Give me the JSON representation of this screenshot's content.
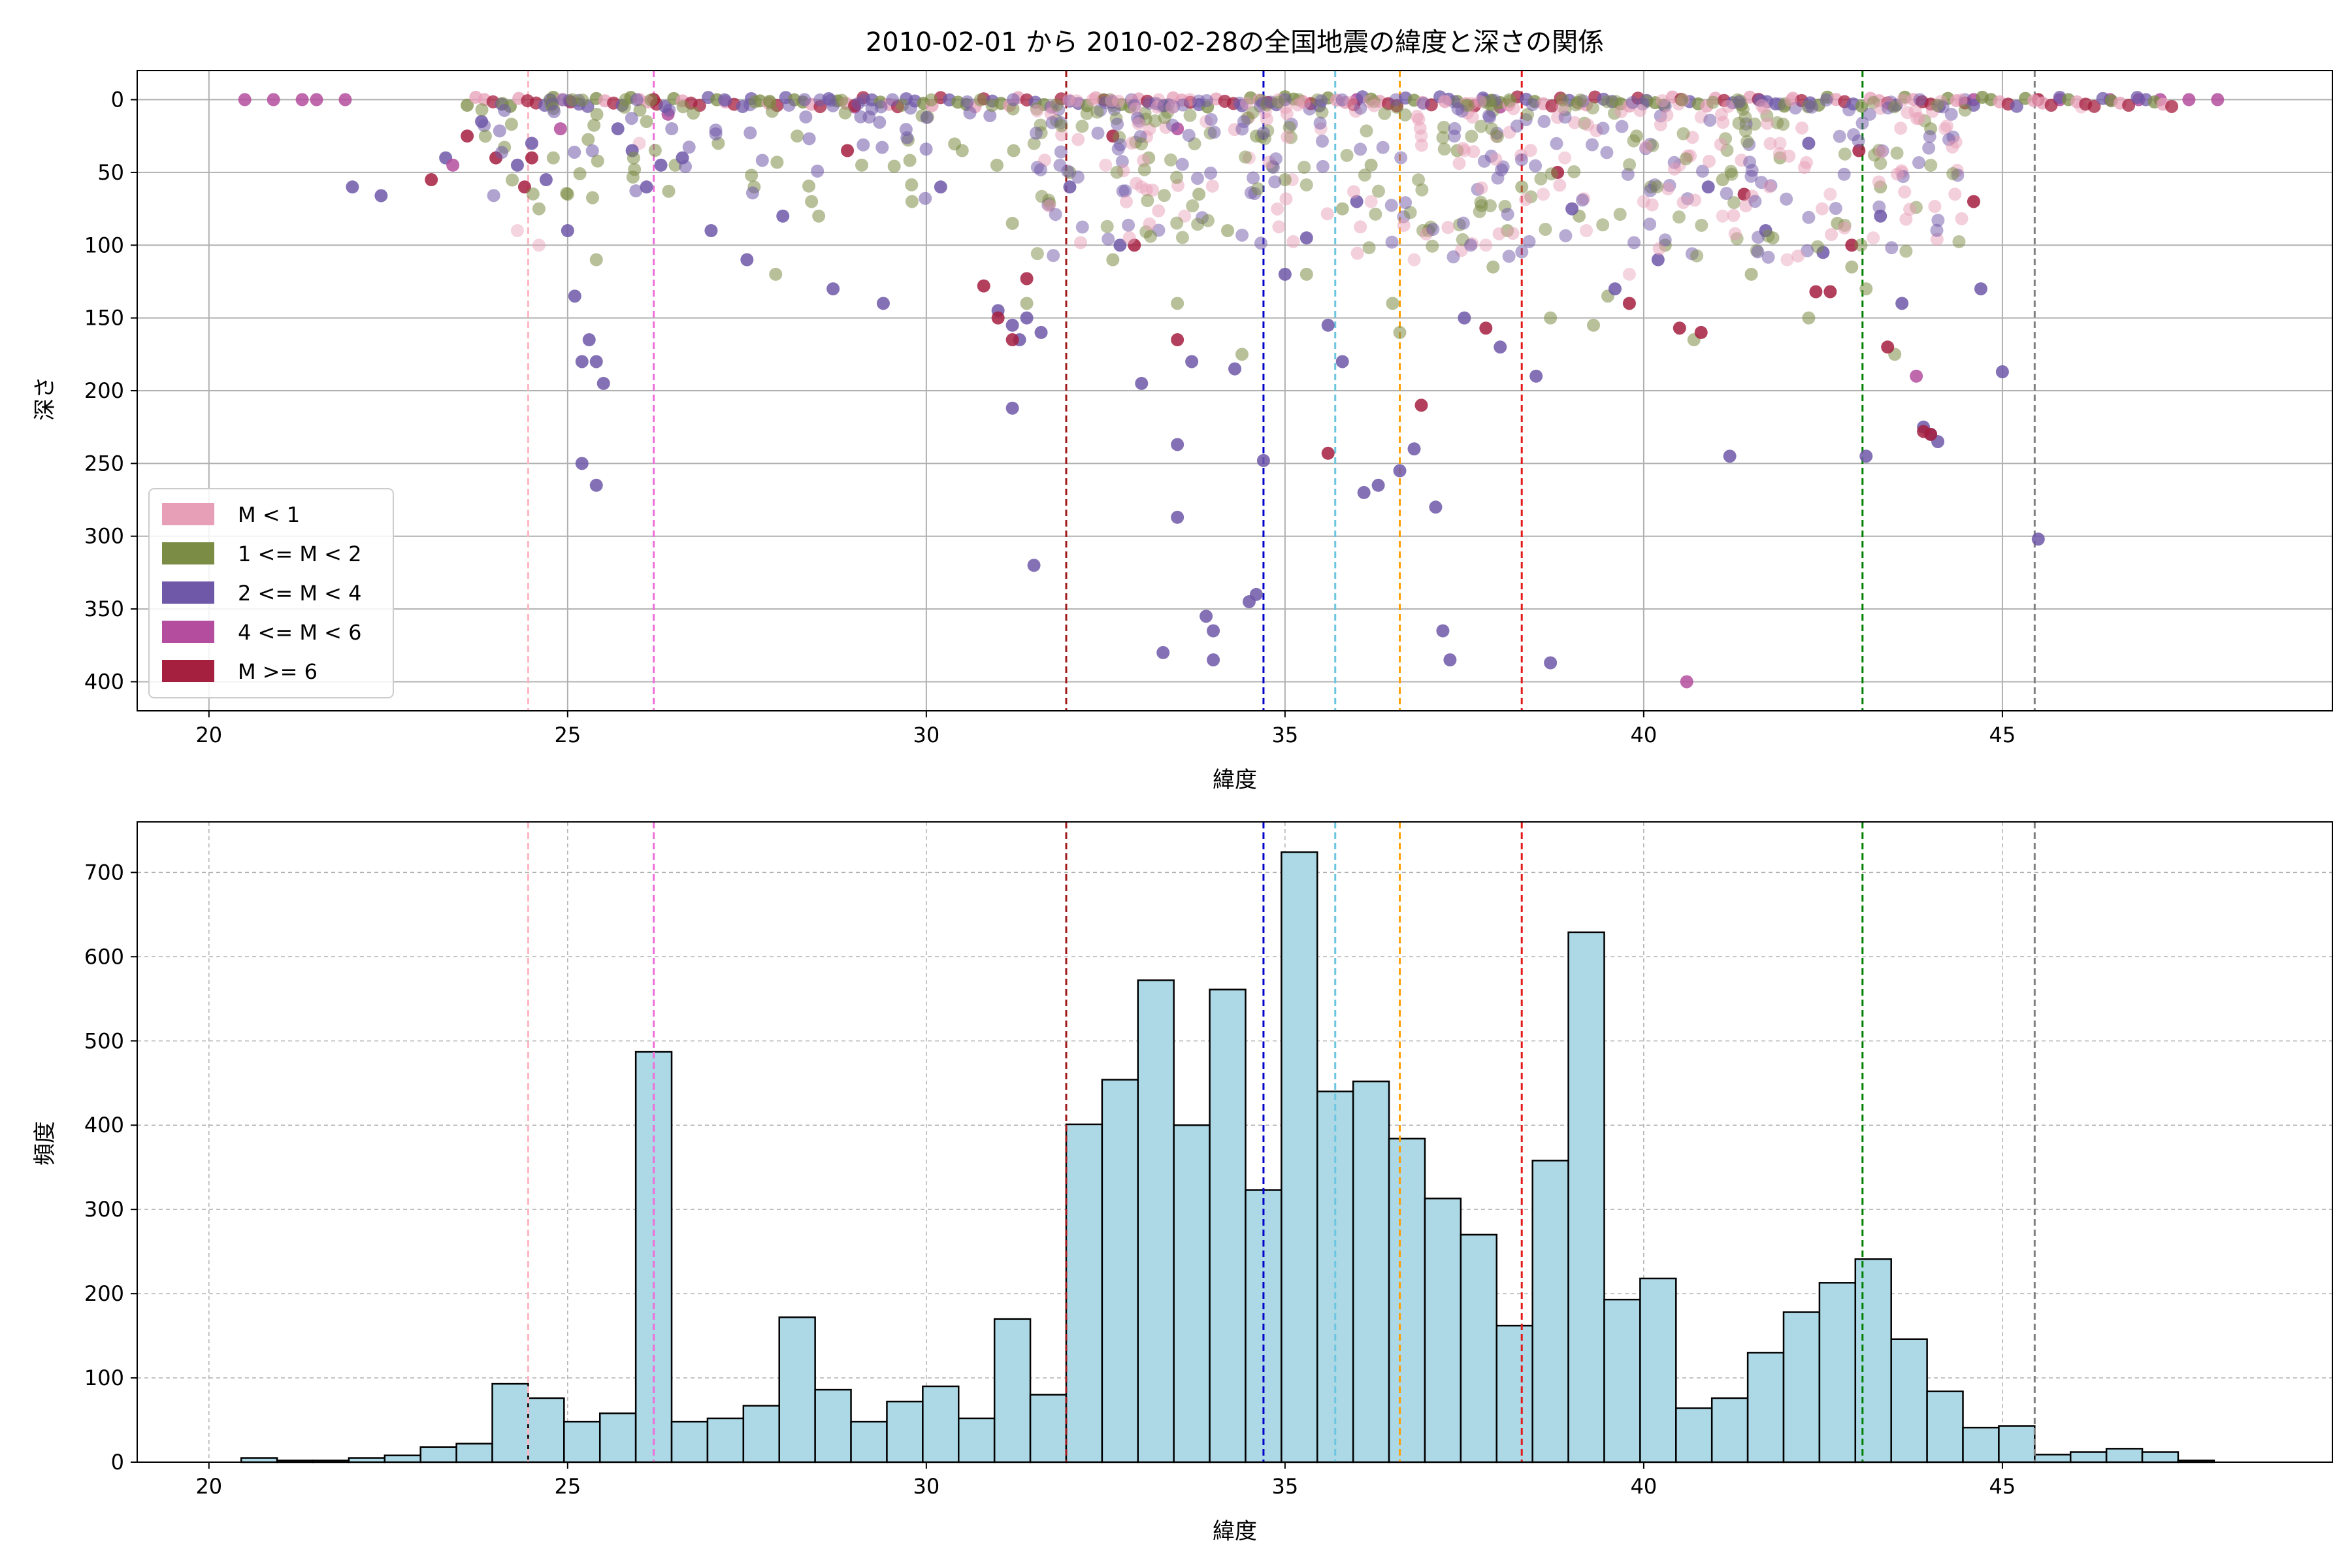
{
  "title": "2010-02-01 から 2010-02-28の全国地震の緯度と深さの関係",
  "colors": {
    "m_lt_1": "#e79fb8",
    "m_1_2": "#7b8c45",
    "m_2_4": "#6f58a8",
    "m_4_6": "#b44d9e",
    "m_ge_6": "#a51f3f",
    "hist_bar": "#add8e6",
    "hist_edge": "#000000",
    "grid": "#b0b0b0"
  },
  "reference_lines": [
    {
      "x": 24.45,
      "color": "#ffb6c1"
    },
    {
      "x": 26.2,
      "color": "#ee6fd8"
    },
    {
      "x": 31.95,
      "color": "#a11b1b"
    },
    {
      "x": 34.7,
      "color": "#0000c8"
    },
    {
      "x": 35.7,
      "color": "#6cc6e0"
    },
    {
      "x": 36.6,
      "color": "#ff9f00"
    },
    {
      "x": 38.3,
      "color": "#e41a1a"
    },
    {
      "x": 43.05,
      "color": "#008000"
    },
    {
      "x": 45.45,
      "color": "#808080"
    }
  ],
  "chart_data": [
    {
      "type": "scatter",
      "xlabel": "緯度",
      "ylabel": "深さ",
      "xlim": [
        19,
        49.6
      ],
      "ylim": [
        420,
        -20
      ],
      "y_inverted": true,
      "xticks": [
        20,
        25,
        30,
        35,
        40,
        45
      ],
      "yticks": [
        0,
        50,
        100,
        150,
        200,
        250,
        300,
        350,
        400
      ],
      "grid": true,
      "legend_position": "lower-left",
      "legend": [
        "M < 1",
        "1 <= M < 2",
        "2 <= M < 4",
        "4 <= M < 6",
        "M >= 6"
      ],
      "series": [
        {
          "name": "M < 1",
          "color_key": "m_lt_1",
          "points": [
            [
              24.6,
              100
            ],
            [
              24.3,
              90
            ],
            [
              26.0,
              30
            ],
            [
              33.0,
              60
            ],
            [
              33.6,
              80
            ],
            [
              34.5,
              40
            ],
            [
              35.5,
              20
            ],
            [
              36.2,
              70
            ],
            [
              36.8,
              110
            ],
            [
              37.5,
              35
            ],
            [
              38.6,
              65
            ],
            [
              39.2,
              90
            ],
            [
              39.8,
              120
            ],
            [
              40.5,
              45
            ],
            [
              41.1,
              80
            ],
            [
              41.9,
              30
            ],
            [
              42.6,
              65
            ],
            [
              43.2,
              95
            ],
            [
              44.2,
              20
            ],
            [
              46.1,
              5
            ],
            [
              32.5,
              45
            ],
            [
              33.9,
              15
            ],
            [
              35.1,
              55
            ],
            [
              36.9,
              25
            ],
            [
              37.8,
              100
            ],
            [
              38.9,
              40
            ],
            [
              40.0,
              70
            ],
            [
              40.8,
              12
            ],
            [
              42.0,
              110
            ],
            [
              43.6,
              50
            ]
          ]
        },
        {
          "name": "1 <= M < 2",
          "color_key": "m_1_2",
          "points": [
            [
              25.0,
              65
            ],
            [
              24.8,
              40
            ],
            [
              25.4,
              110
            ],
            [
              24.6,
              75
            ],
            [
              26.1,
              15
            ],
            [
              26.5,
              45
            ],
            [
              27.1,
              30
            ],
            [
              27.6,
              60
            ],
            [
              28.2,
              25
            ],
            [
              28.5,
              80
            ],
            [
              29.1,
              45
            ],
            [
              29.8,
              70
            ],
            [
              30.5,
              35
            ],
            [
              31.2,
              85
            ],
            [
              32.0,
              50
            ],
            [
              32.6,
              110
            ],
            [
              33.1,
              40
            ],
            [
              33.5,
              140
            ],
            [
              33.8,
              65
            ],
            [
              34.2,
              90
            ],
            [
              34.6,
              25
            ],
            [
              35.0,
              55
            ],
            [
              35.3,
              120
            ],
            [
              35.8,
              75
            ],
            [
              36.2,
              45
            ],
            [
              36.6,
              160
            ],
            [
              37.0,
              90
            ],
            [
              37.4,
              35
            ],
            [
              37.9,
              115
            ],
            [
              38.3,
              60
            ],
            [
              38.7,
              150
            ],
            [
              39.1,
              80
            ],
            [
              39.5,
              135
            ],
            [
              39.9,
              25
            ],
            [
              40.3,
              100
            ],
            [
              40.7,
              165
            ],
            [
              41.1,
              55
            ],
            [
              41.5,
              120
            ],
            [
              41.9,
              40
            ],
            [
              42.3,
              150
            ],
            [
              42.7,
              85
            ],
            [
              43.1,
              130
            ],
            [
              43.3,
              60
            ],
            [
              43.5,
              175
            ],
            [
              44.0,
              20
            ],
            [
              27.9,
              120
            ],
            [
              28.4,
              70
            ],
            [
              31.4,
              140
            ],
            [
              34.4,
              175
            ],
            [
              36.5,
              140
            ],
            [
              38.1,
              90
            ],
            [
              39.3,
              155
            ],
            [
              40.1,
              60
            ],
            [
              41.8,
              95
            ],
            [
              42.9,
              115
            ]
          ]
        },
        {
          "name": "2 <= M < 4",
          "color_key": "m_2_4",
          "points": [
            [
              22.0,
              60
            ],
            [
              22.4,
              66
            ],
            [
              23.3,
              40
            ],
            [
              24.3,
              45
            ],
            [
              24.7,
              55
            ],
            [
              25.0,
              90
            ],
            [
              25.1,
              135
            ],
            [
              25.2,
              180
            ],
            [
              25.3,
              165
            ],
            [
              25.5,
              195
            ],
            [
              25.4,
              180
            ],
            [
              25.2,
              250
            ],
            [
              25.4,
              265
            ],
            [
              25.9,
              35
            ],
            [
              26.1,
              60
            ],
            [
              26.3,
              45
            ],
            [
              27.0,
              90
            ],
            [
              27.5,
              110
            ],
            [
              28.0,
              80
            ],
            [
              28.7,
              130
            ],
            [
              29.4,
              140
            ],
            [
              30.2,
              60
            ],
            [
              31.0,
              145
            ],
            [
              31.2,
              155
            ],
            [
              31.3,
              165
            ],
            [
              31.4,
              150
            ],
            [
              31.6,
              160
            ],
            [
              31.2,
              212
            ],
            [
              31.5,
              320
            ],
            [
              32.0,
              60
            ],
            [
              32.7,
              100
            ],
            [
              33.0,
              195
            ],
            [
              33.3,
              380
            ],
            [
              33.5,
              237
            ],
            [
              33.5,
              287
            ],
            [
              33.7,
              180
            ],
            [
              33.9,
              355
            ],
            [
              34.0,
              365
            ],
            [
              34.0,
              385
            ],
            [
              34.3,
              185
            ],
            [
              34.5,
              345
            ],
            [
              34.6,
              340
            ],
            [
              34.7,
              248
            ],
            [
              35.0,
              120
            ],
            [
              35.3,
              95
            ],
            [
              35.6,
              155
            ],
            [
              35.8,
              180
            ],
            [
              36.0,
              70
            ],
            [
              36.1,
              270
            ],
            [
              36.3,
              265
            ],
            [
              36.8,
              240
            ],
            [
              36.6,
              255
            ],
            [
              37.1,
              280
            ],
            [
              37.2,
              365
            ],
            [
              37.3,
              385
            ],
            [
              37.5,
              150
            ],
            [
              38.0,
              170
            ],
            [
              38.5,
              190
            ],
            [
              38.7,
              387
            ],
            [
              39.0,
              75
            ],
            [
              39.6,
              130
            ],
            [
              40.2,
              110
            ],
            [
              40.9,
              60
            ],
            [
              41.2,
              245
            ],
            [
              41.7,
              90
            ],
            [
              42.3,
              30
            ],
            [
              42.5,
              105
            ],
            [
              43.1,
              245
            ],
            [
              43.3,
              80
            ],
            [
              43.6,
              140
            ],
            [
              43.9,
              225
            ],
            [
              44.0,
              230
            ],
            [
              44.1,
              235
            ],
            [
              44.7,
              130
            ],
            [
              45.0,
              187
            ],
            [
              45.5,
              302
            ],
            [
              23.8,
              15
            ],
            [
              24.5,
              30
            ],
            [
              25.7,
              20
            ],
            [
              26.6,
              40
            ]
          ]
        },
        {
          "name": "4 <= M < 6",
          "color_key": "m_4_6",
          "points": [
            [
              20.5,
              0
            ],
            [
              20.9,
              0
            ],
            [
              21.3,
              0
            ],
            [
              21.5,
              0
            ],
            [
              21.9,
              0
            ],
            [
              23.4,
              45
            ],
            [
              24.9,
              20
            ],
            [
              26.4,
              10
            ],
            [
              29.0,
              5
            ],
            [
              33.5,
              20
            ],
            [
              36.0,
              0
            ],
            [
              38.0,
              5
            ],
            [
              40.6,
              400
            ],
            [
              43.8,
              190
            ],
            [
              44.6,
              0
            ],
            [
              45.8,
              0
            ],
            [
              46.5,
              0
            ],
            [
              46.9,
              0
            ],
            [
              47.2,
              0
            ],
            [
              47.6,
              0
            ],
            [
              48.0,
              0
            ]
          ]
        },
        {
          "name": "M >= 6",
          "color_key": "m_ge_6",
          "points": [
            [
              23.1,
              55
            ],
            [
              23.6,
              25
            ],
            [
              24.0,
              40
            ],
            [
              24.4,
              60
            ],
            [
              24.5,
              40
            ],
            [
              26.2,
              0
            ],
            [
              28.9,
              35
            ],
            [
              30.8,
              128
            ],
            [
              31.0,
              150
            ],
            [
              31.2,
              165
            ],
            [
              31.4,
              123
            ],
            [
              32.6,
              25
            ],
            [
              32.9,
              100
            ],
            [
              33.5,
              165
            ],
            [
              35.6,
              243
            ],
            [
              36.9,
              210
            ],
            [
              37.8,
              157
            ],
            [
              38.8,
              50
            ],
            [
              39.8,
              140
            ],
            [
              40.5,
              157
            ],
            [
              40.8,
              160
            ],
            [
              41.4,
              65
            ],
            [
              42.4,
              132
            ],
            [
              42.6,
              132
            ],
            [
              42.9,
              100
            ],
            [
              43.0,
              35
            ],
            [
              43.4,
              170
            ],
            [
              43.9,
              228
            ],
            [
              44.0,
              230
            ],
            [
              44.6,
              70
            ],
            [
              45.5,
              0
            ]
          ]
        }
      ]
    },
    {
      "type": "bar",
      "subtype": "histogram",
      "xlabel": "緯度",
      "ylabel": "頻度",
      "xlim": [
        19,
        49.6
      ],
      "ylim": [
        0,
        760
      ],
      "xticks": [
        20,
        25,
        30,
        35,
        40,
        45
      ],
      "yticks": [
        0,
        100,
        200,
        300,
        400,
        500,
        600,
        700
      ],
      "grid": true,
      "bin_start": 20.45,
      "bin_width": 0.5,
      "values": [
        5,
        2,
        2,
        5,
        8,
        18,
        22,
        93,
        76,
        48,
        58,
        487,
        48,
        52,
        67,
        172,
        86,
        48,
        72,
        90,
        52,
        170,
        80,
        401,
        454,
        572,
        400,
        561,
        323,
        724,
        440,
        452,
        384,
        313,
        270,
        162,
        358,
        629,
        193,
        218,
        64,
        76,
        130,
        178,
        213,
        241,
        146,
        84,
        41,
        43,
        9,
        12,
        16,
        12,
        2
      ]
    }
  ]
}
